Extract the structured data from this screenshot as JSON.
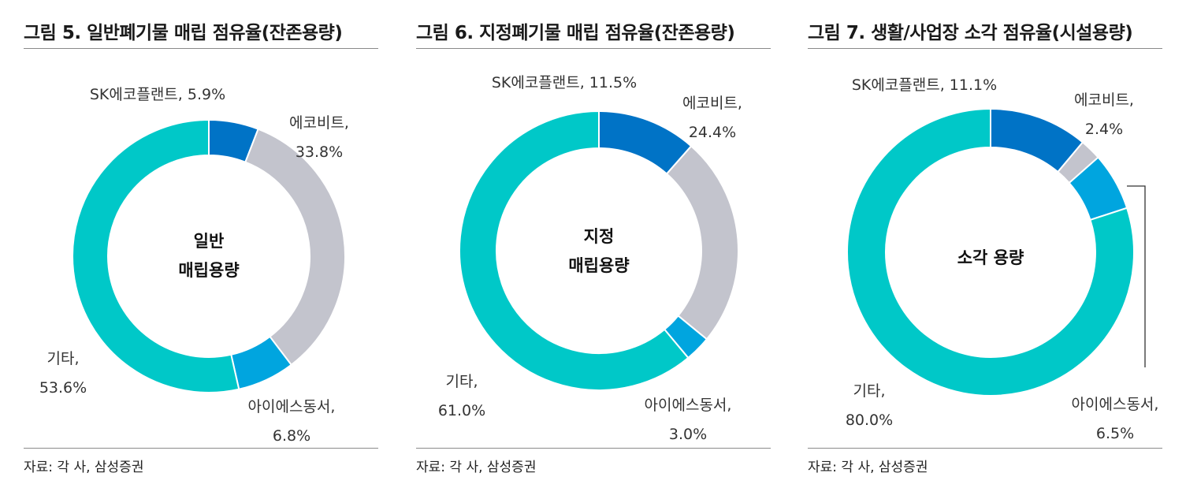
{
  "colors": {
    "sk": "#0073c6",
    "ecobit": "#c3c4cd",
    "ies": "#00a5df",
    "other": "#00c8c8"
  },
  "chart_data": [
    {
      "type": "pie",
      "title": "그림 5. 일반폐기물 매립 점유율(잔존용량)",
      "center_label": [
        "일반",
        "매립용량"
      ],
      "slices": [
        {
          "name": "SK에코플랜트",
          "value": 5.9,
          "label": "SK에코플랜트, 5.9%",
          "color_key": "sk"
        },
        {
          "name": "에코비트",
          "value": 33.8,
          "label": [
            "에코비트,",
            "33.8%"
          ],
          "color_key": "ecobit"
        },
        {
          "name": "아이에스동서",
          "value": 6.8,
          "label": [
            "아이에스동서,",
            "6.8%"
          ],
          "color_key": "ies"
        },
        {
          "name": "기타",
          "value": 53.6,
          "label": [
            "기타,",
            "53.6%"
          ],
          "color_key": "other"
        }
      ],
      "source": "자료: 각 사, 삼성증권"
    },
    {
      "type": "pie",
      "title": "그림 6. 지정폐기물 매립 점유율(잔존용량)",
      "center_label": [
        "지정",
        "매립용량"
      ],
      "slices": [
        {
          "name": "SK에코플랜트",
          "value": 11.5,
          "label": "SK에코플랜트, 11.5%",
          "color_key": "sk"
        },
        {
          "name": "에코비트",
          "value": 24.4,
          "label": [
            "에코비트,",
            "24.4%"
          ],
          "color_key": "ecobit"
        },
        {
          "name": "아이에스동서",
          "value": 3.0,
          "label": [
            "아이에스동서,",
            "3.0%"
          ],
          "color_key": "ies"
        },
        {
          "name": "기타",
          "value": 61.0,
          "label": [
            "기타,",
            "61.0%"
          ],
          "color_key": "other"
        }
      ],
      "source": "자료: 각 사, 삼성증권"
    },
    {
      "type": "pie",
      "title": "그림 7. 생활/사업장 소각 점유율(시설용량)",
      "center_label": [
        "소각 용량"
      ],
      "slices": [
        {
          "name": "SK에코플랜트",
          "value": 11.1,
          "label": "SK에코플랜트, 11.1%",
          "color_key": "sk"
        },
        {
          "name": "에코비트",
          "value": 2.4,
          "label": [
            "에코비트,",
            "2.4%"
          ],
          "color_key": "ecobit"
        },
        {
          "name": "아이에스동서",
          "value": 6.5,
          "label": [
            "아이에스동서,",
            "6.5%"
          ],
          "color_key": "ies"
        },
        {
          "name": "기타",
          "value": 80.0,
          "label": [
            "기타,",
            "80.0%"
          ],
          "color_key": "other"
        }
      ],
      "source": "자료: 각 사, 삼성증권"
    }
  ]
}
